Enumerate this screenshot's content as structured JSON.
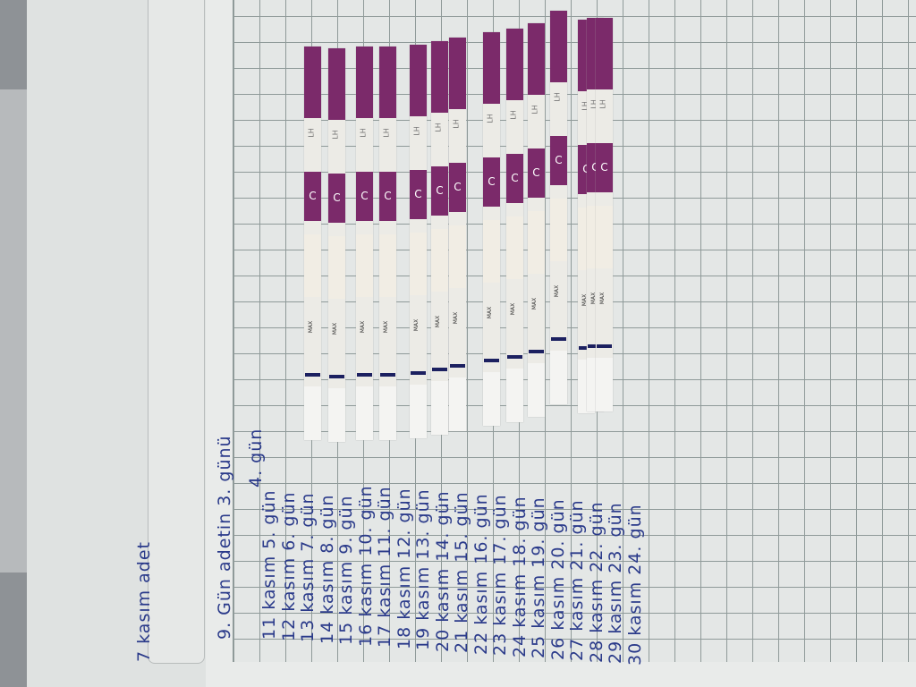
{
  "title": "7 kasım adet",
  "notes": [
    "9. Gün adetin 3. günü",
    "4. gün",
    "11 kasım 5. gün",
    "12 kasım 6. gün",
    "13 kasım 7. gün",
    "14 kasım 8. gün",
    "15 kasım 9. gün",
    "16 kasım 10. gün",
    "17 kasım 11. gün",
    "18 kasım 12. gün",
    "19 kasım 13. gün",
    "20 kasım 14. gün",
    "21 kasım 15. gün",
    "22 kasım 16. gün",
    "23 kasım 17. gün",
    "24 kasım 18. gün",
    "25 kasım 19. gün",
    "26 kasım 20. gün",
    "27 kasım 21. gün",
    "28 kasım 22. gün",
    "29 kasım 23. gün",
    "30 kasım 24. gün"
  ],
  "strip": {
    "lh": "LH",
    "c": "C",
    "max": "MAX"
  },
  "strip_count": 14,
  "colors": {
    "strip_band": "#7b2a6a",
    "ink": "#2a3a8a",
    "paper": "#e4e7e6"
  }
}
